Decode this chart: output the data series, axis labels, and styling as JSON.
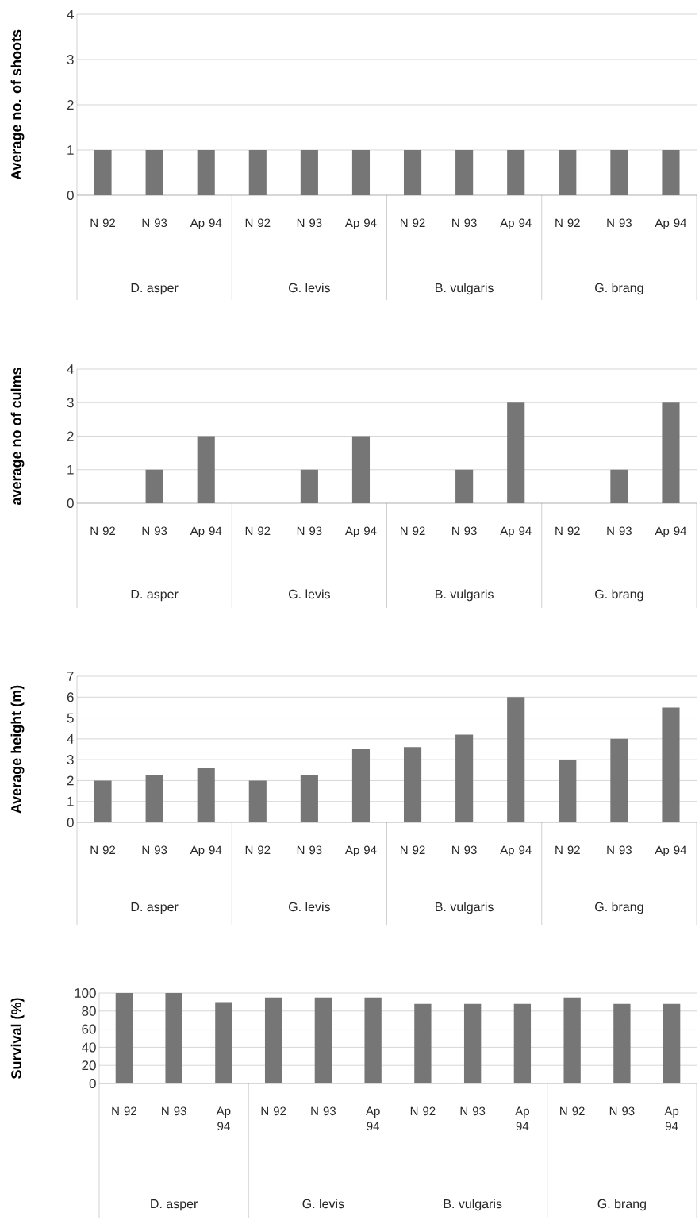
{
  "chart_data": [
    {
      "type": "bar",
      "ylabel": "Average no. of shoots",
      "categories": [
        "N 92",
        "N 93",
        "Ap 94",
        "N 92",
        "N 93",
        "Ap 94",
        "N 92",
        "N 93",
        "Ap 94",
        "N 92",
        "N 93",
        "Ap 94"
      ],
      "values": [
        1,
        1,
        1,
        1,
        1,
        1,
        1,
        1,
        1,
        1,
        1,
        1
      ],
      "color": "#767676",
      "ylim": [
        0,
        4
      ],
      "yticks": [
        0,
        1,
        2,
        3,
        4
      ],
      "grid": "y",
      "annotations": [
        "D. asper",
        "G. levis",
        "B. vulgaris",
        "G. brang"
      ]
    },
    {
      "type": "bar",
      "ylabel": "average no of culms",
      "categories": [
        "N 92",
        "N 93",
        "Ap 94",
        "N 92",
        "N 93",
        "Ap 94",
        "N 92",
        "N 93",
        "Ap 94",
        "N 92",
        "N 93",
        "Ap 94"
      ],
      "values": [
        0,
        1,
        2,
        0,
        1,
        2,
        0,
        1,
        3,
        0,
        1,
        3
      ],
      "color": "#767676",
      "ylim": [
        0,
        4
      ],
      "yticks": [
        0,
        1,
        2,
        3,
        4
      ],
      "grid": "y",
      "annotations": [
        "D. asper",
        "G. levis",
        "B. vulgaris",
        "G. brang"
      ]
    },
    {
      "type": "bar",
      "ylabel": "Average height (m)",
      "categories": [
        "N 92",
        "N 93",
        "Ap 94",
        "N 92",
        "N 93",
        "Ap 94",
        "N 92",
        "N 93",
        "Ap 94",
        "N 92",
        "N 93",
        "Ap 94"
      ],
      "values": [
        2,
        2.25,
        2.6,
        2,
        2.25,
        3.5,
        3.6,
        4.2,
        6,
        3,
        4,
        5.5
      ],
      "color": "#767676",
      "ylim": [
        0,
        7
      ],
      "yticks": [
        0,
        1,
        2,
        3,
        4,
        5,
        6,
        7
      ],
      "grid": "y",
      "annotations": [
        "D. asper",
        "G. levis",
        "B. vulgaris",
        "G. brang"
      ]
    },
    {
      "type": "bar",
      "ylabel": "Survival (%)",
      "categories": [
        "N 92",
        "N 93",
        "Ap 94",
        "N 92",
        "N 93",
        "Ap 94",
        "N 92",
        "N 93",
        "Ap 94",
        "N 92",
        "N 93",
        "Ap 94"
      ],
      "values": [
        100,
        100,
        90,
        95,
        95,
        95,
        88,
        88,
        88,
        95,
        88,
        88
      ],
      "color": "#767676",
      "ylim": [
        0,
        100
      ],
      "yticks": [
        0,
        20,
        40,
        60,
        80,
        100
      ],
      "grid": "y",
      "annotations": [
        "D. asper",
        "G. levis",
        "B. vulgaris",
        "G. brang"
      ]
    }
  ]
}
